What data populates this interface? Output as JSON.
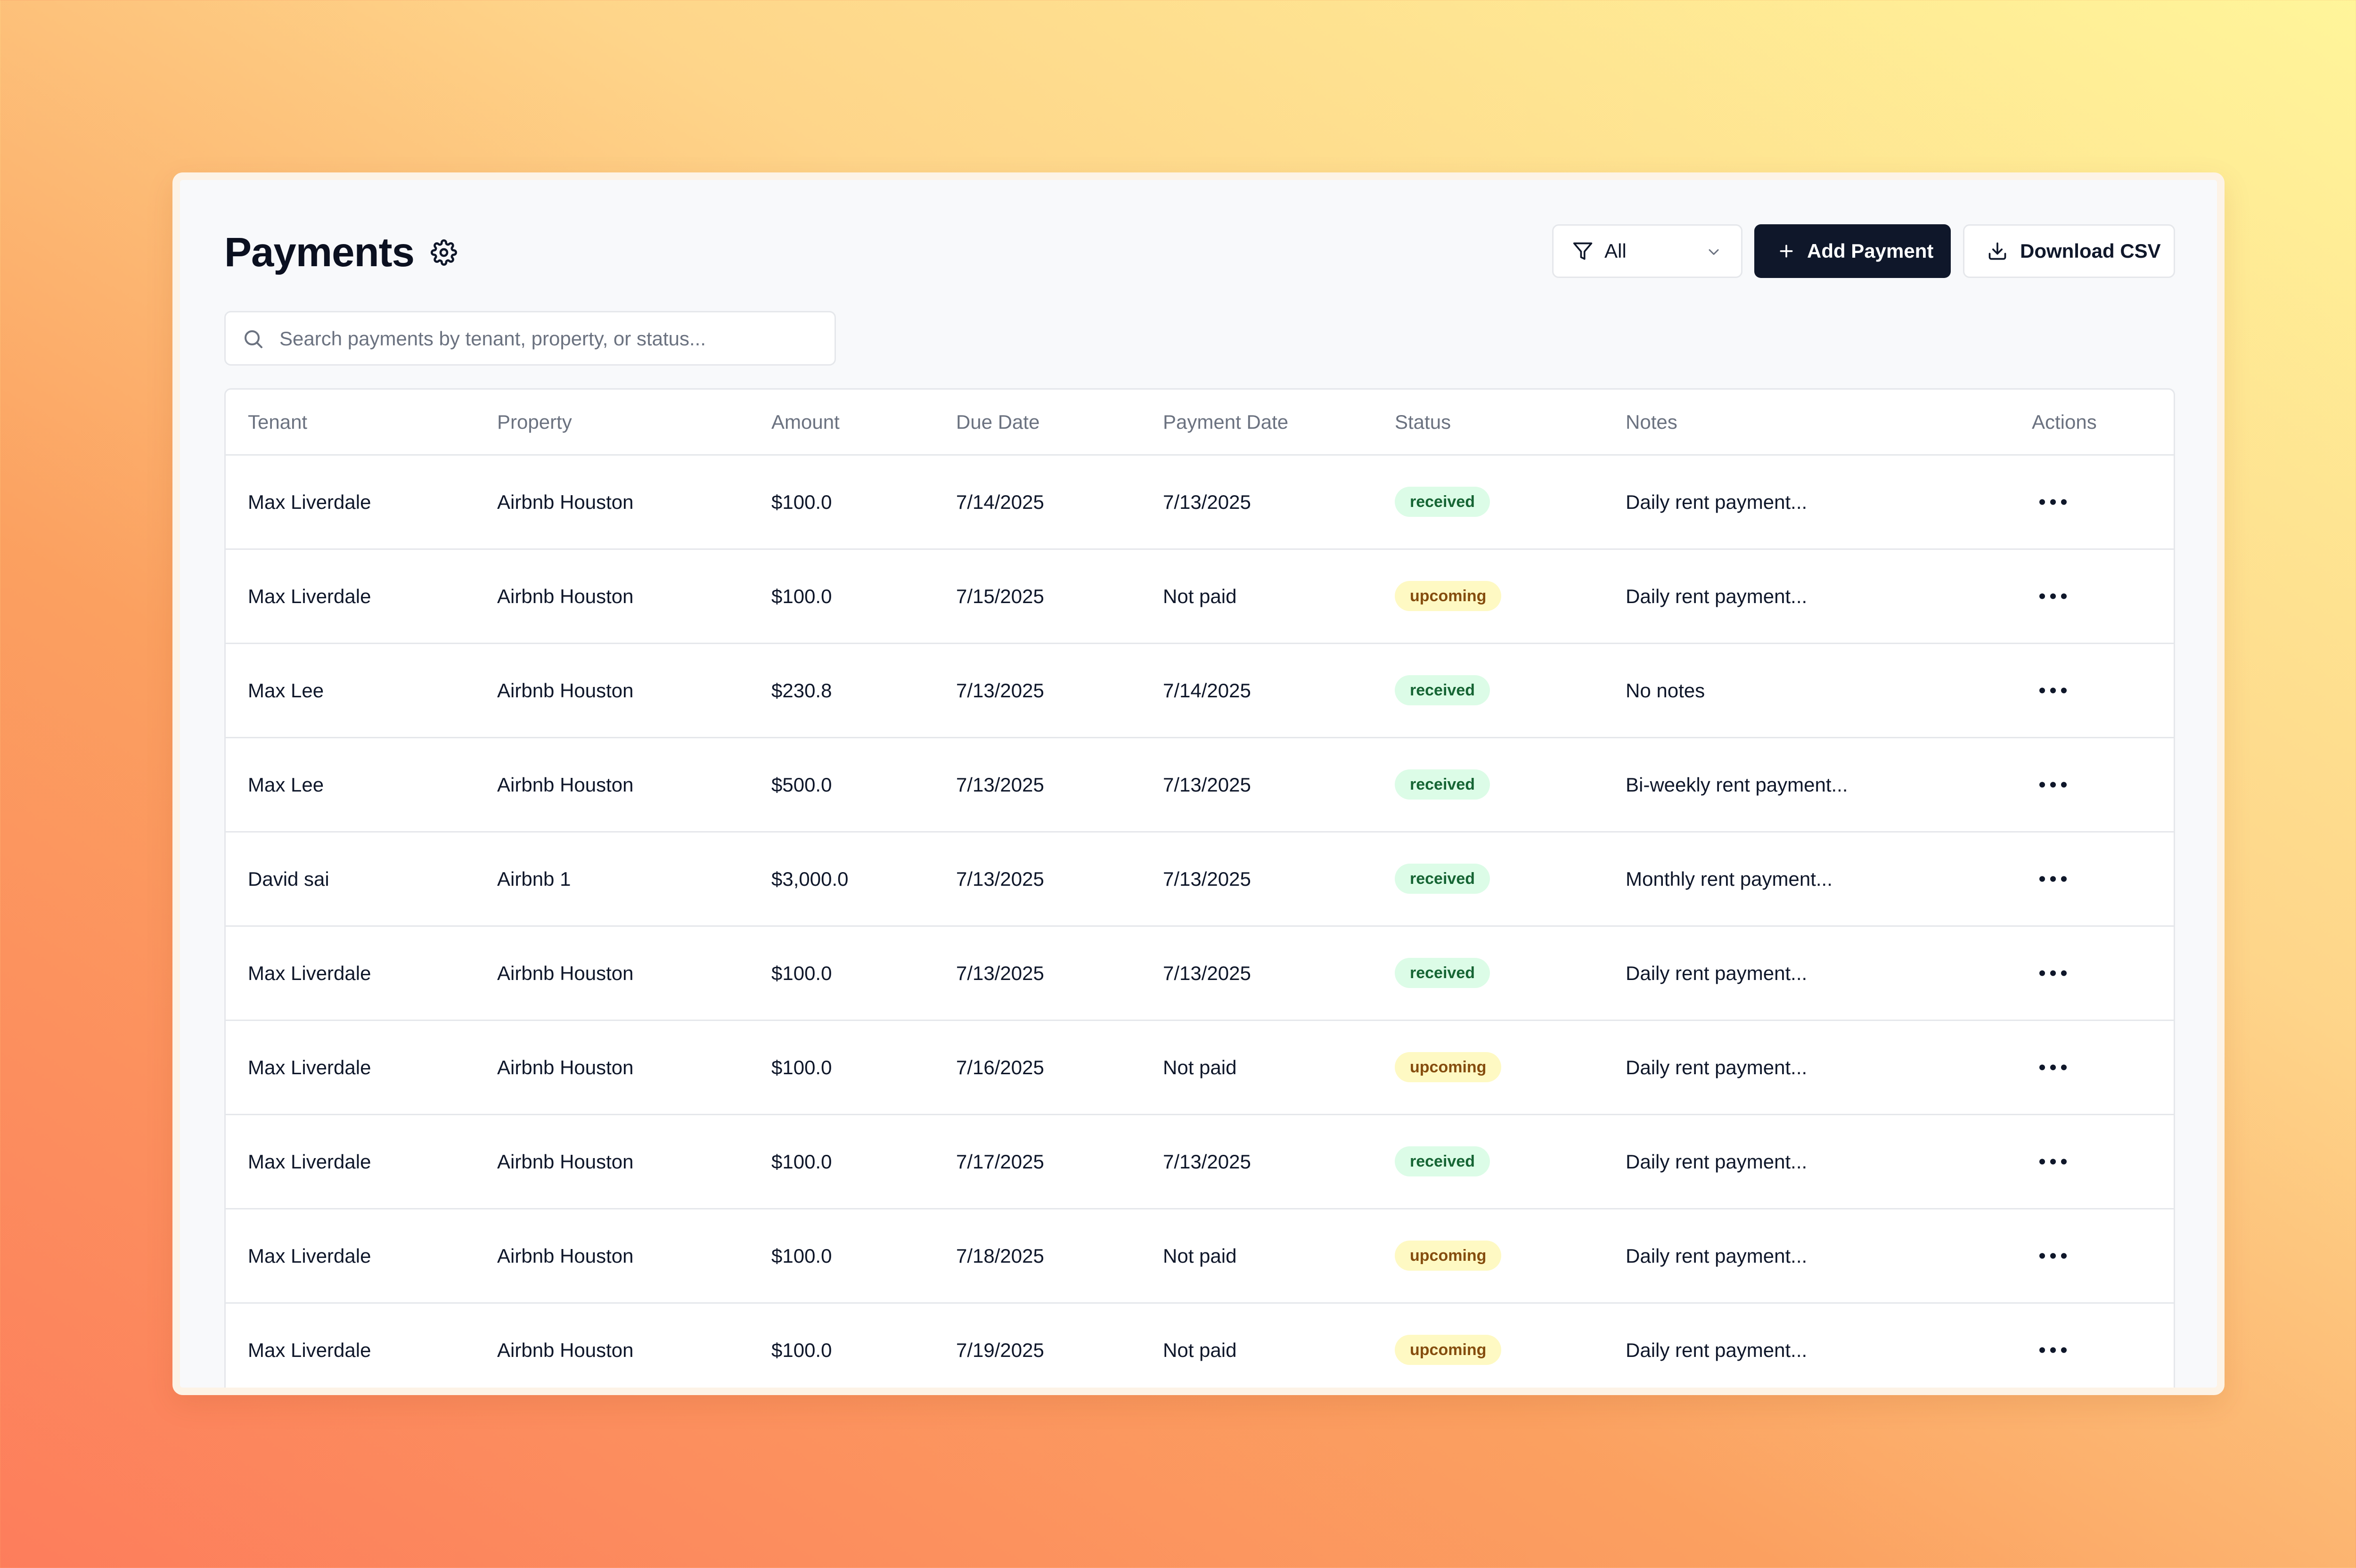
{
  "header": {
    "title": "Payments",
    "settings_icon": "gear-icon"
  },
  "toolbar": {
    "filter": {
      "icon": "filter-icon",
      "selected": "All",
      "chevron": "chevron-down-icon"
    },
    "add_label": "Add Payment",
    "add_icon": "plus-icon",
    "download_label": "Download CSV",
    "download_icon": "download-icon"
  },
  "search": {
    "icon": "search-icon",
    "placeholder": "Search payments by tenant, property, or status...",
    "value": ""
  },
  "table": {
    "columns": [
      "Tenant",
      "Property",
      "Amount",
      "Due Date",
      "Payment Date",
      "Status",
      "Notes",
      "Actions"
    ],
    "rows": [
      {
        "tenant": "Max Liverdale",
        "property": "Airbnb Houston",
        "amount": "$100.0",
        "due_date": "7/14/2025",
        "payment_date": "7/13/2025",
        "status": "received",
        "notes": "Daily rent payment..."
      },
      {
        "tenant": "Max Liverdale",
        "property": "Airbnb Houston",
        "amount": "$100.0",
        "due_date": "7/15/2025",
        "payment_date": "Not paid",
        "status": "upcoming",
        "notes": "Daily rent payment..."
      },
      {
        "tenant": "Max Lee",
        "property": "Airbnb Houston",
        "amount": "$230.8",
        "due_date": "7/13/2025",
        "payment_date": "7/14/2025",
        "status": "received",
        "notes": "No notes"
      },
      {
        "tenant": "Max Lee",
        "property": "Airbnb Houston",
        "amount": "$500.0",
        "due_date": "7/13/2025",
        "payment_date": "7/13/2025",
        "status": "received",
        "notes": "Bi-weekly rent payment..."
      },
      {
        "tenant": "David sai",
        "property": "Airbnb 1",
        "amount": "$3,000.0",
        "due_date": "7/13/2025",
        "payment_date": "7/13/2025",
        "status": "received",
        "notes": "Monthly rent payment..."
      },
      {
        "tenant": "Max Liverdale",
        "property": "Airbnb Houston",
        "amount": "$100.0",
        "due_date": "7/13/2025",
        "payment_date": "7/13/2025",
        "status": "received",
        "notes": "Daily rent payment..."
      },
      {
        "tenant": "Max Liverdale",
        "property": "Airbnb Houston",
        "amount": "$100.0",
        "due_date": "7/16/2025",
        "payment_date": "Not paid",
        "status": "upcoming",
        "notes": "Daily rent payment..."
      },
      {
        "tenant": "Max Liverdale",
        "property": "Airbnb Houston",
        "amount": "$100.0",
        "due_date": "7/17/2025",
        "payment_date": "7/13/2025",
        "status": "received",
        "notes": "Daily rent payment..."
      },
      {
        "tenant": "Max Liverdale",
        "property": "Airbnb Houston",
        "amount": "$100.0",
        "due_date": "7/18/2025",
        "payment_date": "Not paid",
        "status": "upcoming",
        "notes": "Daily rent payment..."
      },
      {
        "tenant": "Max Liverdale",
        "property": "Airbnb Houston",
        "amount": "$100.0",
        "due_date": "7/19/2025",
        "payment_date": "Not paid",
        "status": "upcoming",
        "notes": "Daily rent payment..."
      }
    ],
    "actions_icon": "more-horizontal-icon"
  },
  "colors": {
    "primary_button": "#0f172a",
    "received_bg": "#dcfce7",
    "received_text": "#166534",
    "upcoming_bg": "#fef9c3",
    "upcoming_text": "#854d0e"
  }
}
